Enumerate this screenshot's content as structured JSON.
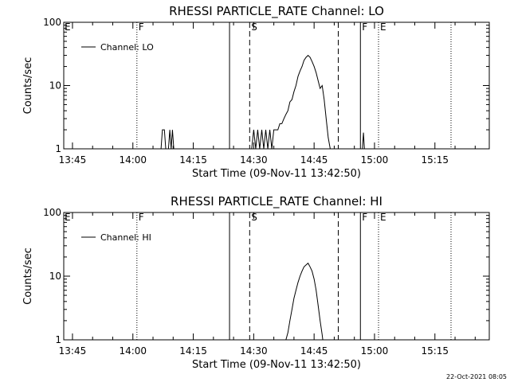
{
  "chart_data": [
    {
      "type": "line",
      "title": "RHESSI PARTICLE_RATE Channel: LO",
      "xlabel": "Start Time (09-Nov-11 13:42:50)",
      "ylabel": "Counts/sec",
      "y_scale": "log",
      "ylim": [
        1,
        100
      ],
      "y_ticks": [
        "1",
        "10",
        "100"
      ],
      "xlim": [
        "13:42:50",
        "15:28:30"
      ],
      "x_ticks": [
        "13:45",
        "14:00",
        "14:15",
        "14:30",
        "14:45",
        "15:00",
        "15:15"
      ],
      "legend": {
        "position": "top-left",
        "entries": [
          "Channel: LO"
        ]
      },
      "series": [
        {
          "name": "Channel: LO",
          "color": "#000000",
          "segments": [
            [
              [
                "14:07:00",
                1
              ],
              [
                "14:07:20",
                2
              ],
              [
                "14:07:50",
                2
              ],
              [
                "14:08:10",
                1
              ]
            ],
            [
              [
                "14:08:50",
                1
              ],
              [
                "14:09:10",
                2
              ],
              [
                "14:09:30",
                1
              ],
              [
                "14:09:50",
                2
              ],
              [
                "14:10:10",
                1
              ]
            ],
            [
              [
                "14:29:30",
                1
              ],
              [
                "14:30:00",
                2
              ],
              [
                "14:30:30",
                1
              ],
              [
                "14:31:00",
                2
              ],
              [
                "14:31:30",
                1
              ],
              [
                "14:32:00",
                2
              ],
              [
                "14:32:30",
                1
              ],
              [
                "14:33:00",
                2
              ],
              [
                "14:33:30",
                1
              ],
              [
                "14:34:00",
                2
              ],
              [
                "14:34:30",
                1
              ],
              [
                "14:35:00",
                2
              ],
              [
                "14:35:30",
                2
              ],
              [
                "14:36:00",
                2
              ],
              [
                "14:36:30",
                2.5
              ],
              [
                "14:37:00",
                2.5
              ],
              [
                "14:37:30",
                3
              ],
              [
                "14:38:00",
                3.5
              ],
              [
                "14:38:30",
                4
              ],
              [
                "14:39:00",
                5.5
              ],
              [
                "14:39:30",
                6
              ],
              [
                "14:40:00",
                8
              ],
              [
                "14:40:30",
                10
              ],
              [
                "14:41:00",
                14
              ],
              [
                "14:41:30",
                17
              ],
              [
                "14:42:00",
                20
              ],
              [
                "14:42:30",
                25
              ],
              [
                "14:43:00",
                28
              ],
              [
                "14:43:30",
                30
              ],
              [
                "14:44:00",
                28
              ],
              [
                "14:44:30",
                24
              ],
              [
                "14:45:00",
                20
              ],
              [
                "14:45:30",
                16
              ],
              [
                "14:46:00",
                12
              ],
              [
                "14:46:30",
                9
              ],
              [
                "14:47:00",
                10
              ],
              [
                "14:47:30",
                6
              ],
              [
                "14:48:00",
                3
              ],
              [
                "14:48:30",
                1.5
              ],
              [
                "14:49:00",
                1
              ]
            ],
            [
              [
                "14:57:00",
                1
              ],
              [
                "14:57:15",
                1.8
              ],
              [
                "14:57:30",
                1
              ]
            ]
          ]
        }
      ],
      "vertical_lines": [
        {
          "time": "14:01:00",
          "style": "dotted",
          "label": "F"
        },
        {
          "time": "14:24:00",
          "style": "solid",
          "label": ""
        },
        {
          "time": "14:29:00",
          "style": "dashed",
          "label": "S"
        },
        {
          "time": "14:51:00",
          "style": "dashed",
          "label": ""
        },
        {
          "time": "14:56:30",
          "style": "solid",
          "label": "F"
        },
        {
          "time": "15:01:00",
          "style": "dotted",
          "label": "E"
        },
        {
          "time": "15:19:00",
          "style": "dotted",
          "label": ""
        }
      ],
      "edge_labels": [
        "E"
      ]
    },
    {
      "type": "line",
      "title": "RHESSI PARTICLE_RATE Channel: HI",
      "xlabel": "Start Time (09-Nov-11 13:42:50)",
      "ylabel": "Counts/sec",
      "y_scale": "log",
      "ylim": [
        1,
        100
      ],
      "y_ticks": [
        "1",
        "10",
        "100"
      ],
      "xlim": [
        "13:42:50",
        "15:28:30"
      ],
      "x_ticks": [
        "13:45",
        "14:00",
        "14:15",
        "14:30",
        "14:45",
        "15:00",
        "15:15"
      ],
      "legend": {
        "position": "top-left",
        "entries": [
          "Channel: HI"
        ]
      },
      "series": [
        {
          "name": "Channel: HI",
          "color": "#000000",
          "segments": [
            [
              [
                "14:37:40",
                0.8
              ],
              [
                "14:38:00",
                1
              ],
              [
                "14:38:30",
                1.3
              ],
              [
                "14:39:00",
                2
              ],
              [
                "14:39:30",
                3
              ],
              [
                "14:40:00",
                4.5
              ],
              [
                "14:40:30",
                6
              ],
              [
                "14:41:00",
                8
              ],
              [
                "14:41:30",
                10
              ],
              [
                "14:42:00",
                12
              ],
              [
                "14:42:30",
                14
              ],
              [
                "14:43:00",
                15
              ],
              [
                "14:43:30",
                16
              ],
              [
                "14:44:00",
                14
              ],
              [
                "14:44:30",
                12
              ],
              [
                "14:45:00",
                9
              ],
              [
                "14:45:30",
                6
              ],
              [
                "14:46:00",
                3.5
              ],
              [
                "14:46:30",
                2
              ],
              [
                "14:47:00",
                1.2
              ],
              [
                "14:47:20",
                0.8
              ]
            ]
          ]
        }
      ],
      "vertical_lines": [
        {
          "time": "14:01:00",
          "style": "dotted",
          "label": "F"
        },
        {
          "time": "14:24:00",
          "style": "solid",
          "label": ""
        },
        {
          "time": "14:29:00",
          "style": "dashed",
          "label": "S"
        },
        {
          "time": "14:51:00",
          "style": "dashed",
          "label": ""
        },
        {
          "time": "14:56:30",
          "style": "solid",
          "label": "F"
        },
        {
          "time": "15:01:00",
          "style": "dotted",
          "label": "E"
        },
        {
          "time": "15:19:00",
          "style": "dotted",
          "label": ""
        }
      ],
      "edge_labels": [
        "E"
      ]
    }
  ],
  "timestamp": "22-Oct-2021 08:05"
}
